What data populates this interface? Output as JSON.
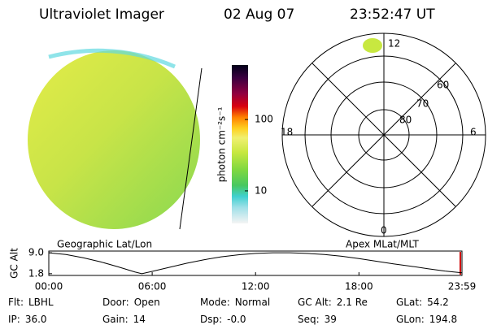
{
  "header": {
    "title": "Ultraviolet Imager",
    "date": "02 Aug 07",
    "time": "23:52:47 UT"
  },
  "image_panel": {
    "label": "Geographic Lat/Lon"
  },
  "colorbar": {
    "label": "photon cm⁻²s⁻¹",
    "lim": [
      3.5,
      580
    ],
    "log": true,
    "ticks": [
      10,
      100
    ]
  },
  "polar_panel": {
    "label": "Apex MLat/MLT",
    "mlt_labels": [
      "12",
      "18",
      "6",
      "0"
    ],
    "lat_labels": [
      "60",
      "70",
      "80"
    ]
  },
  "chart_data": {
    "type": "line",
    "ylabel": "GC Alt",
    "color": "#000000",
    "x": [
      0,
      1,
      2,
      3,
      4,
      5,
      5.4,
      6,
      7,
      8,
      9,
      10,
      11,
      12,
      13,
      14,
      15,
      16,
      17,
      18,
      19,
      20,
      21,
      22,
      23,
      23.98
    ],
    "values": [
      9.0,
      8.4,
      7.3,
      5.9,
      4.2,
      2.4,
      1.8,
      2.6,
      4.0,
      5.4,
      6.6,
      7.6,
      8.3,
      8.8,
      9.0,
      9.0,
      8.8,
      8.4,
      7.8,
      7.0,
      6.1,
      5.2,
      4.4,
      3.5,
      2.7,
      2.1
    ],
    "xlim": [
      0,
      23.98
    ],
    "ylim": [
      1.2,
      9.6
    ],
    "xticks": [
      {
        "value": 0,
        "label": "00:00"
      },
      {
        "value": 6,
        "label": "06:00"
      },
      {
        "value": 12,
        "label": "12:00"
      },
      {
        "value": 18,
        "label": "18:00"
      },
      {
        "value": 23.98,
        "label": "23:59"
      }
    ],
    "yticks": [
      1.8,
      {
        "value": 9,
        "label": "9.0"
      }
    ]
  },
  "footer": [
    [
      {
        "label": "Flt:",
        "value": "LBHL"
      },
      {
        "label": "Door:",
        "value": "Open"
      },
      {
        "label": "Mode:",
        "value": "Normal"
      },
      {
        "label": "GC Alt:",
        "value": "2.1 Re"
      },
      {
        "label": "GLat:",
        "value": "54.2"
      }
    ],
    [
      {
        "label": "IP:",
        "value": "36.0"
      },
      {
        "label": "Gain:",
        "value": "14"
      },
      {
        "label": "Dsp:",
        "value": "-0.0"
      },
      {
        "label": "Seq:",
        "value": "39"
      },
      {
        "label": "GLon:",
        "value": "194.8"
      }
    ]
  ]
}
